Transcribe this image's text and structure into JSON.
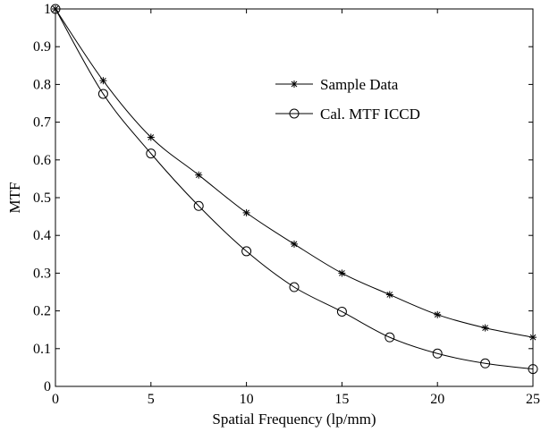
{
  "chart_data": {
    "type": "line",
    "title": "",
    "xlabel": "Spatial Frequency (lp/mm)",
    "ylabel": "MTF",
    "xlim": [
      0,
      25
    ],
    "ylim": [
      0,
      1
    ],
    "x_ticks": [
      0,
      5,
      10,
      15,
      20,
      25
    ],
    "y_ticks": [
      0,
      0.1,
      0.2,
      0.3,
      0.4,
      0.5,
      0.6,
      0.7,
      0.8,
      0.9,
      1
    ],
    "grid": false,
    "legend_position": "upper-right",
    "series": [
      {
        "name": "Sample Data",
        "marker": "asterisk",
        "color": "#000000",
        "x": [
          0,
          2.5,
          5,
          7.5,
          10,
          12.5,
          15,
          17.5,
          20,
          22.5,
          25
        ],
        "y": [
          1.0,
          0.81,
          0.66,
          0.56,
          0.46,
          0.377,
          0.3,
          0.243,
          0.19,
          0.155,
          0.13
        ]
      },
      {
        "name": "Cal. MTF ICCD",
        "marker": "circle",
        "color": "#000000",
        "x": [
          0,
          2.5,
          5,
          7.5,
          10,
          12.5,
          15,
          17.5,
          20,
          22.5,
          25
        ],
        "y": [
          1.0,
          0.775,
          0.617,
          0.478,
          0.358,
          0.263,
          0.198,
          0.13,
          0.087,
          0.061,
          0.046
        ]
      }
    ]
  }
}
